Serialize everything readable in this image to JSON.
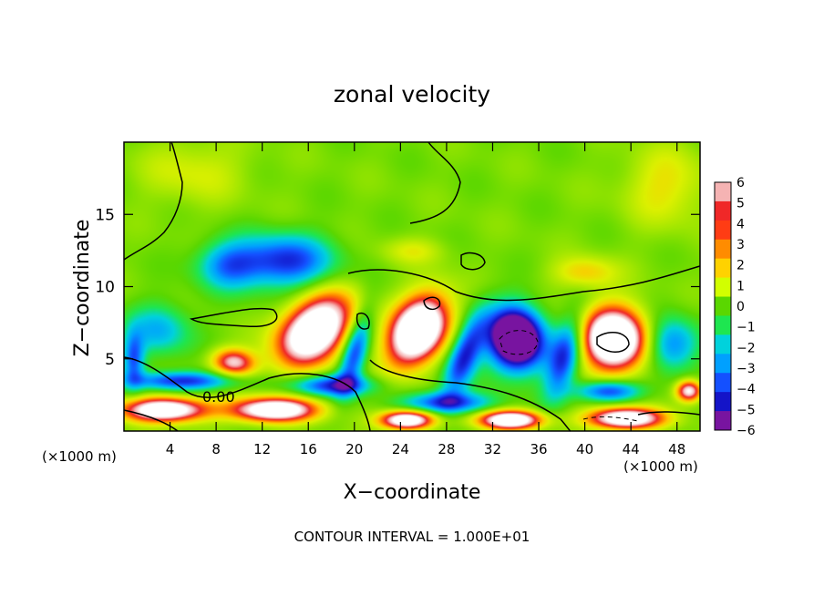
{
  "chart_data": {
    "type": "heatmap",
    "title": "zonal velocity",
    "xlabel": "X−coordinate",
    "ylabel": "Z−coordinate",
    "x_unit_label": "(×1000 m)",
    "y_unit_label": "(×1000 m)",
    "xlim": [
      0,
      50
    ],
    "ylim": [
      0,
      20
    ],
    "x_ticks": [
      4,
      8,
      12,
      16,
      20,
      24,
      28,
      32,
      36,
      40,
      44,
      48
    ],
    "y_ticks": [
      5,
      10,
      15
    ],
    "contour_interval_text": "CONTOUR INTERVAL = 1.000E+01",
    "contour_label": "0.00",
    "colorbar": {
      "ticks": [
        6,
        5,
        4,
        3,
        2,
        1,
        0,
        -1,
        -2,
        -3,
        -4,
        -5,
        -6
      ],
      "tick_labels": [
        "6",
        "5",
        "4",
        "3",
        "2",
        "1",
        "0",
        "−1",
        "−2",
        "−3",
        "−4",
        "−5",
        "−6"
      ],
      "colors_top_to_bottom": [
        "#f5b3b3",
        "#f02828",
        "#ff3c14",
        "#ff8c00",
        "#ffd200",
        "#d2ff00",
        "#5ad700",
        "#1ee650",
        "#00d2dc",
        "#00a0ff",
        "#1450ff",
        "#1414c8",
        "#7814a0"
      ]
    },
    "field_blobs": [
      {
        "x": 16.5,
        "z": 7.0,
        "w": -0.5,
        "sx": 3.2,
        "sy": 2.6,
        "v": 10
      },
      {
        "x": 25.5,
        "z": 7.0,
        "w": -0.35,
        "sx": 2.6,
        "sy": 2.6,
        "v": 11
      },
      {
        "x": 34.0,
        "z": 6.4,
        "w": 0.1,
        "sx": 2.6,
        "sy": 2.3,
        "v": -11
      },
      {
        "x": 42.5,
        "z": 6.4,
        "w": 0.05,
        "sx": 3.0,
        "sy": 2.3,
        "v": 11
      },
      {
        "x": 9.5,
        "z": 4.8,
        "w": 0.2,
        "sx": 2.0,
        "sy": 1.0,
        "v": 6
      },
      {
        "x": 14.0,
        "z": 11.8,
        "w": 0,
        "sx": 4.5,
        "sy": 2.0,
        "v": -5
      },
      {
        "x": 9.0,
        "z": 11.5,
        "w": 0,
        "sx": 3.0,
        "sy": 1.8,
        "v": -3.5
      },
      {
        "x": 3.0,
        "z": 7.0,
        "w": 0,
        "sx": 3.0,
        "sy": 2.0,
        "v": -3
      },
      {
        "x": 20.0,
        "z": 5.5,
        "w": -0.3,
        "sx": 1.2,
        "sy": 3.0,
        "v": -5
      },
      {
        "x": 29.5,
        "z": 5.2,
        "w": -0.4,
        "sx": 1.5,
        "sy": 3.0,
        "v": -5.5
      },
      {
        "x": 38.2,
        "z": 5.2,
        "w": -0.3,
        "sx": 1.5,
        "sy": 3.0,
        "v": -5
      },
      {
        "x": 47.5,
        "z": 6.0,
        "w": 0,
        "sx": 2.5,
        "sy": 2.0,
        "v": -4
      },
      {
        "x": 5.0,
        "z": 3.5,
        "w": 0.05,
        "sx": 5.0,
        "sy": 0.7,
        "v": -5
      },
      {
        "x": 18.0,
        "z": 3.2,
        "w": 0.0,
        "sx": 4.0,
        "sy": 0.8,
        "v": -5
      },
      {
        "x": 28.0,
        "z": 2.0,
        "w": 0,
        "sx": 4.0,
        "sy": 0.8,
        "v": -5
      },
      {
        "x": 42.0,
        "z": 2.8,
        "w": 0,
        "sx": 3.0,
        "sy": 0.8,
        "v": -5
      },
      {
        "x": 3.5,
        "z": 1.5,
        "w": 0,
        "sx": 4.0,
        "sy": 0.9,
        "v": 9
      },
      {
        "x": 13.0,
        "z": 1.5,
        "w": 0,
        "sx": 4.0,
        "sy": 0.9,
        "v": 9
      },
      {
        "x": 24.5,
        "z": 0.8,
        "w": 0,
        "sx": 2.5,
        "sy": 0.7,
        "v": 9
      },
      {
        "x": 33.5,
        "z": 0.8,
        "w": 0,
        "sx": 3.0,
        "sy": 0.7,
        "v": 9
      },
      {
        "x": 43.5,
        "z": 0.9,
        "w": 0,
        "sx": 3.5,
        "sy": 0.8,
        "v": 9
      },
      {
        "x": 49.0,
        "z": 2.8,
        "w": 0,
        "sx": 1.2,
        "sy": 0.8,
        "v": 7
      },
      {
        "x": 47.0,
        "z": 17.0,
        "w": 0,
        "sx": 4.0,
        "sy": 3.0,
        "v": 2
      },
      {
        "x": 6.0,
        "z": 18.0,
        "w": 0,
        "sx": 5.0,
        "sy": 2.5,
        "v": 1.5
      },
      {
        "x": 40.0,
        "z": 11.0,
        "w": 0,
        "sx": 3.0,
        "sy": 1.2,
        "v": 2.5
      },
      {
        "x": 25.0,
        "z": 12.5,
        "w": 0,
        "sx": 3.0,
        "sy": 1.0,
        "v": 1.5
      },
      {
        "x": 0.8,
        "z": 5.0,
        "w": 0,
        "sx": 1.0,
        "sy": 2.0,
        "v": -4
      }
    ]
  }
}
